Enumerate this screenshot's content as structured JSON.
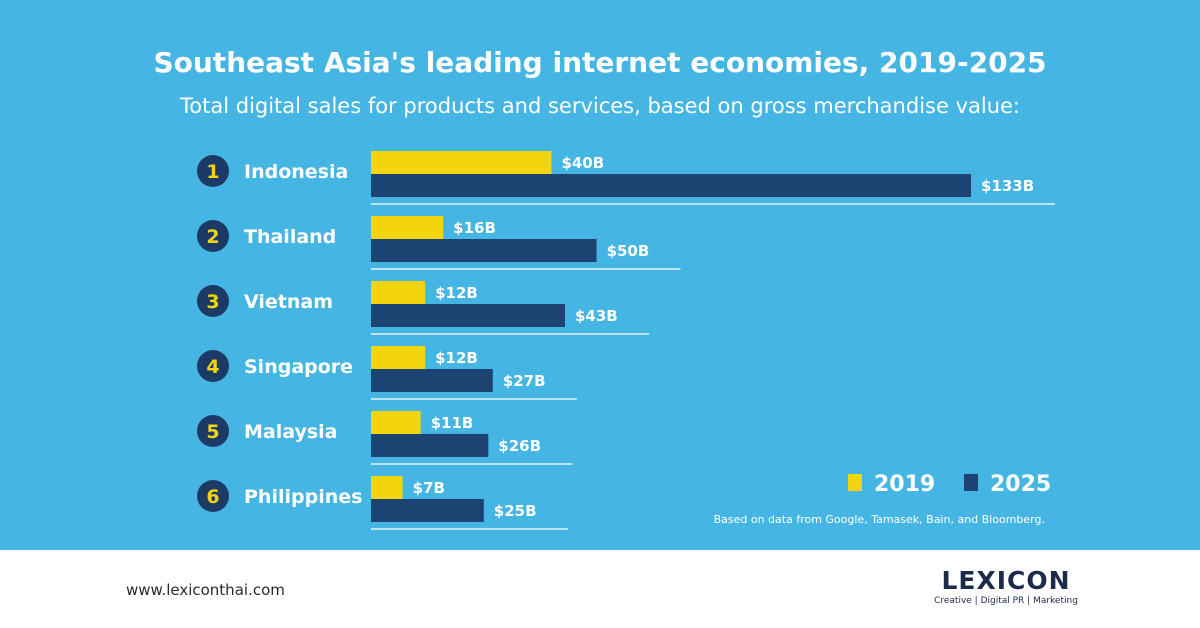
{
  "header": {
    "title": "Southeast Asia's leading internet economies, 2019-2025",
    "subtitle": "Total digital sales for products and services, based on gross merchandise value:"
  },
  "colors": {
    "background": "#45b6e3",
    "series_2019": "#f2d40f",
    "series_2025": "#1d4373",
    "rank_badge": "#1d3a66",
    "rank_number": "#f2d40f",
    "text": "#ffffff"
  },
  "chart_data": {
    "type": "bar",
    "orientation": "horizontal",
    "title": "Southeast Asia's leading internet economies, 2019-2025",
    "subtitle": "Total digital sales for products and services, based on gross merchandise value:",
    "categories": [
      "Indonesia",
      "Thailand",
      "Vietnam",
      "Singapore",
      "Malaysia",
      "Philippines"
    ],
    "ranks": [
      "1",
      "2",
      "3",
      "4",
      "5",
      "6"
    ],
    "series": [
      {
        "name": "2019",
        "values": [
          40,
          16,
          12,
          12,
          11,
          7
        ],
        "labels": [
          "$40B",
          "$16B",
          "$12B",
          "$12B",
          "$11B",
          "$7B"
        ]
      },
      {
        "name": "2025",
        "values": [
          133,
          50,
          43,
          27,
          26,
          25
        ],
        "labels": [
          "$133B",
          "$50B",
          "$43B",
          "$27B",
          "$26B",
          "$25B"
        ]
      }
    ],
    "unit": "USD billions",
    "legend_position": "bottom-right",
    "source_note": "Based on data from Google, Tamasek, Bain, and Bloomberg."
  },
  "footer": {
    "url": "www.lexiconthai.com",
    "logo_text": "LEXICON",
    "logo_tagline": "Creative | Digital PR | Marketing"
  }
}
